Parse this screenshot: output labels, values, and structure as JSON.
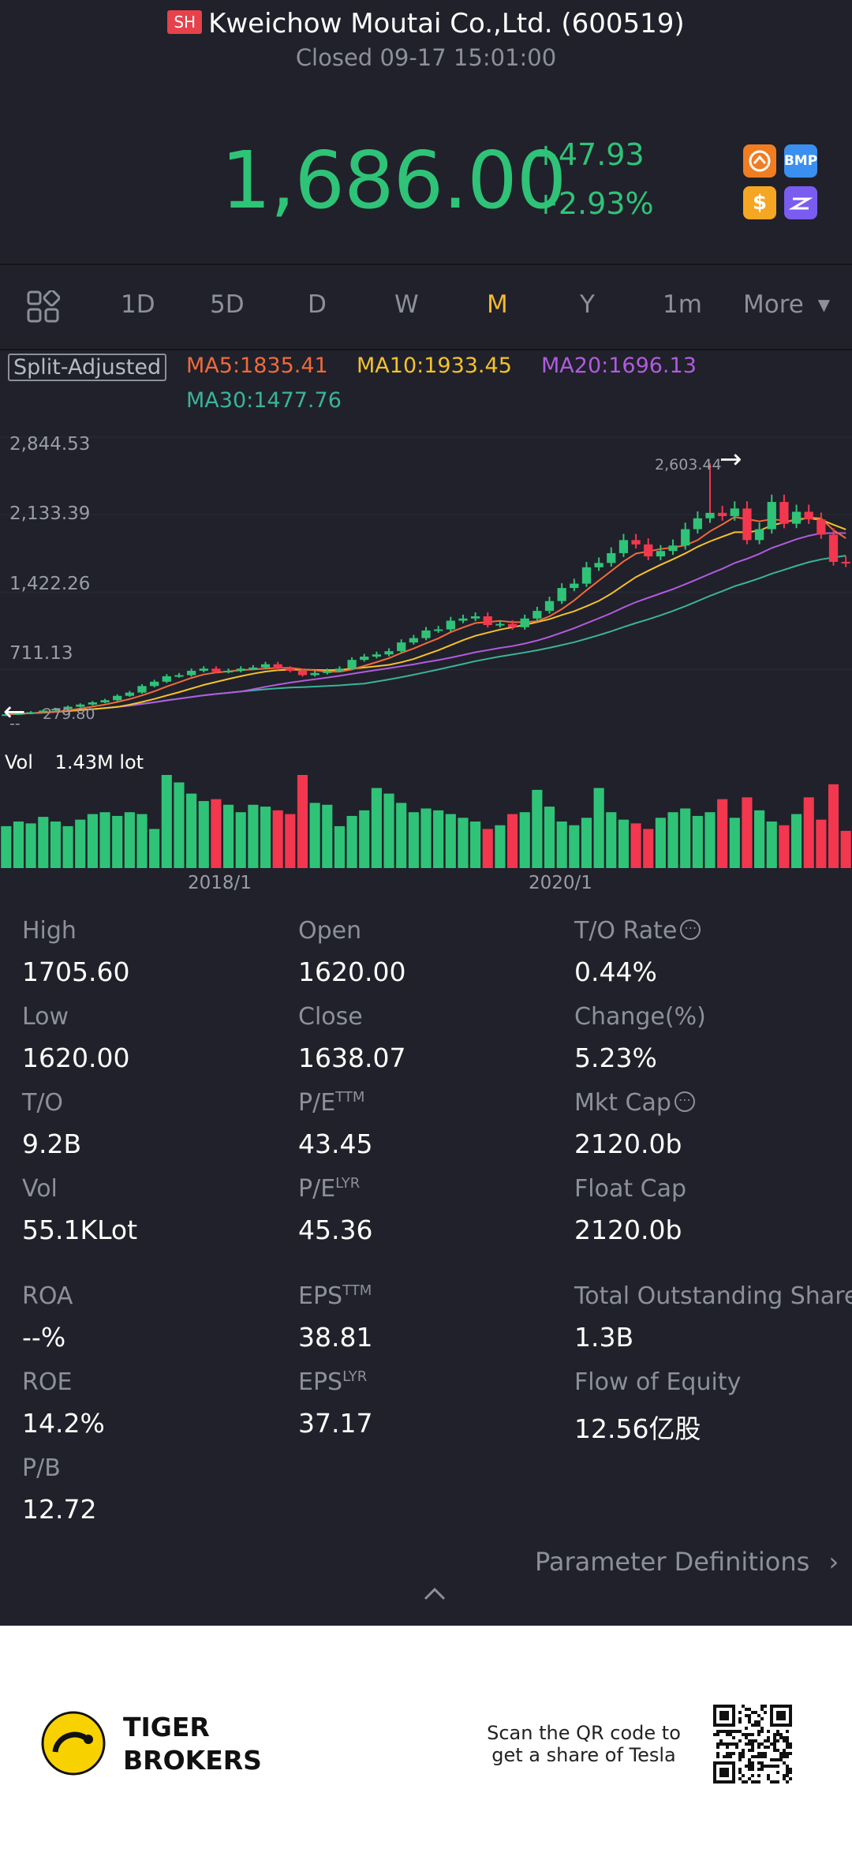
{
  "header": {
    "exchange": "SH",
    "name": "Kweichow Moutai Co.,Ltd. (600519)",
    "status": "Closed 09-17 15:01:00"
  },
  "quote": {
    "price": "1,686.00",
    "change": "+47.93",
    "change_pct": "+2.93%",
    "up_color": "#2fc378",
    "down_color": "#f2374f"
  },
  "quick_icons": [
    {
      "icon": "app-icon-orange",
      "text": ""
    },
    {
      "icon": "bmp-icon",
      "text": "BMP"
    },
    {
      "icon": "dollar-icon",
      "text": "$"
    },
    {
      "icon": "purple-app-icon",
      "text": ""
    }
  ],
  "tabs": [
    "1D",
    "5D",
    "D",
    "W",
    "M",
    "Y",
    "1m",
    "More"
  ],
  "active_tab": "M",
  "chart_header": {
    "adjust": "Split-Adjusted",
    "ma5": "MA5:1835.41",
    "ma10": "MA10:1933.45",
    "ma20": "MA20:1696.13",
    "ma30": "MA30:1477.76",
    "ma5_color": "#f06a3a",
    "ma10_color": "#f5c22a",
    "ma20_color": "#b15be0",
    "ma30_color": "#3ab39b"
  },
  "chart_data": {
    "type": "candlestick",
    "yticks": [
      "2,844.53",
      "2,133.39",
      "1,422.26",
      "711.13"
    ],
    "ylim": [
      279.8,
      2844.53
    ],
    "xticks": [
      "2018/1",
      "2020/1"
    ],
    "high_label": "2,603.44",
    "low_label": "279.80",
    "low_sub": "--",
    "volume_label": "Vol",
    "volume_value": "1.43M lot",
    "close": [
      300,
      310,
      320,
      335,
      350,
      370,
      390,
      410,
      430,
      470,
      500,
      560,
      600,
      650,
      660,
      700,
      720,
      690,
      700,
      720,
      730,
      760,
      720,
      700,
      660,
      680,
      700,
      720,
      800,
      830,
      850,
      880,
      960,
      1000,
      1070,
      1080,
      1160,
      1180,
      1200,
      1120,
      1130,
      1100,
      1180,
      1250,
      1340,
      1460,
      1500,
      1650,
      1690,
      1780,
      1900,
      1860,
      1750,
      1800,
      1850,
      2000,
      2100,
      2150,
      2120,
      2190,
      1900,
      2000,
      2250,
      2050,
      2160,
      2090,
      1950,
      1700,
      1686
    ],
    "volume": [
      0.45,
      0.5,
      0.48,
      0.55,
      0.5,
      0.45,
      0.52,
      0.58,
      0.6,
      0.56,
      0.6,
      0.58,
      0.42,
      1.0,
      0.92,
      0.8,
      0.72,
      0.74,
      0.68,
      0.6,
      0.68,
      0.66,
      0.62,
      0.58,
      1.0,
      0.7,
      0.68,
      0.45,
      0.56,
      0.62,
      0.86,
      0.8,
      0.7,
      0.6,
      0.64,
      0.62,
      0.58,
      0.54,
      0.5,
      0.42,
      0.46,
      0.58,
      0.6,
      0.84,
      0.66,
      0.5,
      0.46,
      0.54,
      0.86,
      0.6,
      0.52,
      0.48,
      0.42,
      0.54,
      0.6,
      0.64,
      0.56,
      0.6,
      0.74,
      0.54,
      0.76,
      0.62,
      0.5,
      0.46,
      0.58,
      0.76,
      0.52,
      0.9,
      0.4
    ]
  },
  "stats": [
    {
      "label": "High",
      "value": "1705.60"
    },
    {
      "label": "Open",
      "value": "1620.00"
    },
    {
      "label": "T/O Rate",
      "value": "0.44%",
      "info": true
    },
    {
      "label": "Low",
      "value": "1620.00"
    },
    {
      "label": "Close",
      "value": "1638.07"
    },
    {
      "label": "Change(%)",
      "value": "5.23%"
    },
    {
      "label": "T/O",
      "value": "9.2B"
    },
    {
      "label": "P/E",
      "sup": "TTM",
      "value": "43.45"
    },
    {
      "label": "Mkt Cap",
      "value": "2120.0b",
      "info": true
    },
    {
      "label": "Vol",
      "value": "55.1KLot"
    },
    {
      "label": "P/E",
      "sup": "LYR",
      "value": "45.36"
    },
    {
      "label": "Float Cap",
      "value": "2120.0b"
    },
    {
      "label": "ROA",
      "value": "--%"
    },
    {
      "label": "EPS",
      "sup": "TTM",
      "value": "38.81"
    },
    {
      "label": "Total Outstanding Shares",
      "value": "1.3B"
    },
    {
      "label": "ROE",
      "value": "14.2%"
    },
    {
      "label": "EPS",
      "sup": "LYR",
      "value": "37.17"
    },
    {
      "label": "Flow of Equity",
      "value": "12.56亿股"
    },
    {
      "label": "P/B",
      "value": "12.72"
    }
  ],
  "param_definitions": "Parameter Definitions",
  "footer": {
    "brand_line1": "TIGER",
    "brand_line2": "BROKERS",
    "scan_line1": "Scan the QR code to",
    "scan_line2": "get a share of Tesla"
  }
}
